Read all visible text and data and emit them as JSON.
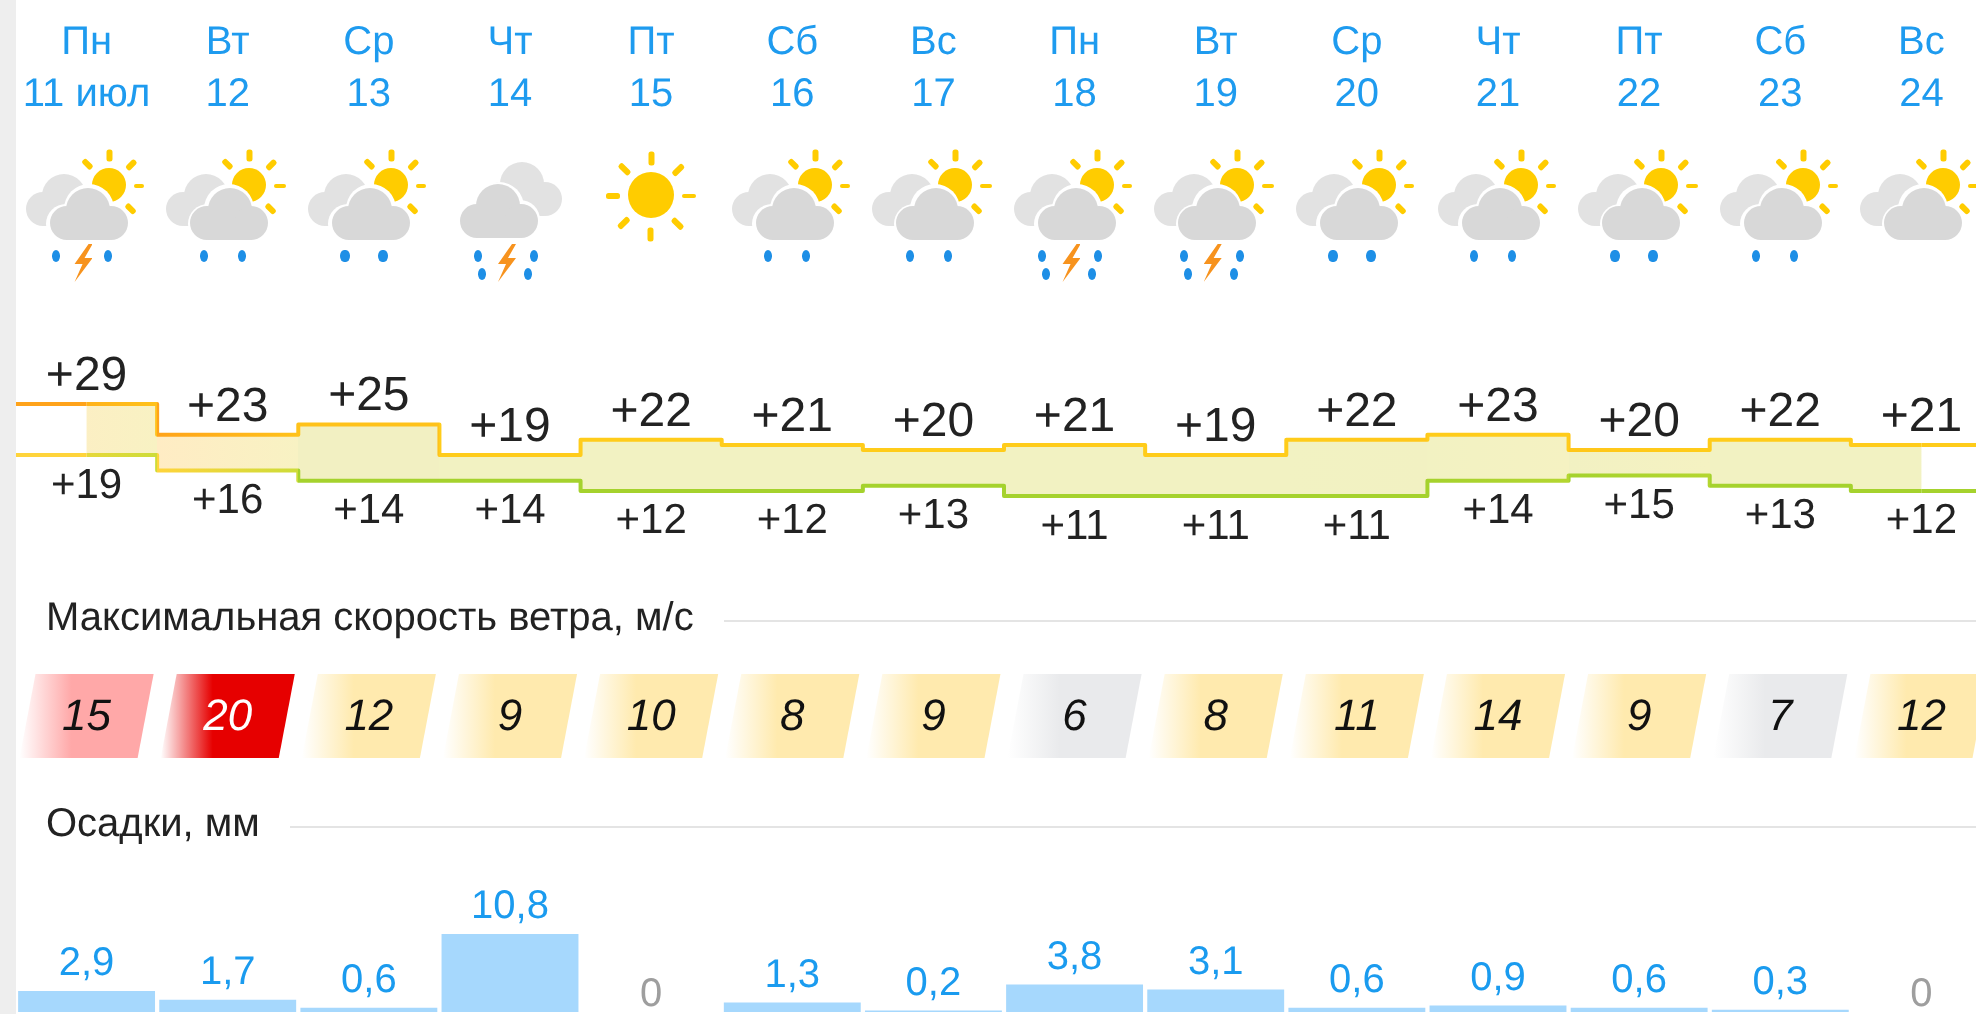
{
  "chart_data": [
    {
      "type": "step",
      "categories": [
        "Пн 11 июл",
        "Вт 12",
        "Ср 13",
        "Чт 14",
        "Пт 15",
        "Сб 16",
        "Вс 17",
        "Пн 18",
        "Вт 19",
        "Ср 20",
        "Чт 21",
        "Пт 22",
        "Сб 23",
        "Вс 24"
      ],
      "tick_labels": "x",
      "series": [
        {
          "values": [
            29,
            23,
            25,
            19,
            22,
            21,
            20,
            21,
            19,
            22,
            23,
            20,
            22,
            21
          ],
          "value_labels": [
            "+29",
            "+23",
            "+25",
            "+19",
            "+22",
            "+21",
            "+20",
            "+21",
            "+19",
            "+22",
            "+23",
            "+20",
            "+22",
            "+21"
          ],
          "colors": [
            "#ffa31a",
            "#ffc21a",
            "#ffc21a",
            "#ffcc1a",
            "#ffcc1a",
            "#ffcc1a",
            "#ffcc1a",
            "#ffcc1a",
            "#ffcc1a",
            "#ffcc1a",
            "#ffc61a",
            "#ffcc1a",
            "#ffcc1a",
            "#ffcc1a"
          ],
          "lower": [
            19,
            16,
            14,
            14,
            12,
            12,
            13,
            11,
            11,
            11,
            14,
            15,
            13,
            12
          ],
          "upper": [
            29,
            23,
            25,
            19,
            22,
            21,
            20,
            21,
            19,
            22,
            23,
            20,
            22,
            21
          ]
        },
        {
          "values": [
            19,
            16,
            14,
            14,
            12,
            12,
            13,
            11,
            11,
            11,
            14,
            15,
            13,
            12
          ],
          "value_labels": [
            "+19",
            "+16",
            "+14",
            "+14",
            "+12",
            "+12",
            "+13",
            "+11",
            "+11",
            "+11",
            "+14",
            "+15",
            "+13",
            "+12"
          ],
          "colors": [
            "#ffd43b",
            "#cddc39",
            "#a5d22d",
            "#a5d22d",
            "#a5d22d",
            "#a5d22d",
            "#a5d22d",
            "#a5d22d",
            "#a5d22d",
            "#a5d22d",
            "#a5d22d",
            "#b4d630",
            "#a5d22d",
            "#a5d22d"
          ]
        }
      ]
    },
    {
      "type": "heatmap",
      "title": "Максимальная скорость ветра, м/с",
      "categories": [
        null,
        null,
        null,
        null,
        null,
        null,
        null,
        null,
        null,
        null,
        null,
        null,
        null,
        null
      ],
      "y_categories": [
        null
      ],
      "tick_labels": false,
      "cells": [
        [
          15,
          20,
          12,
          9,
          10,
          8,
          9,
          6,
          8,
          11,
          14,
          9,
          7,
          12
        ]
      ],
      "colors": [
        "#ffa8a8",
        "#e60000",
        "#ffeaae",
        "#ffeaae",
        "#ffeaae",
        "#ffeaae",
        "#ffeaae",
        "#e9eaec",
        "#ffeaae",
        "#ffeaae",
        "#ffeaae",
        "#ffeaae",
        "#e9eaec",
        "#ffeaae"
      ],
      "data_labels": true
    },
    {
      "type": "bar",
      "title": "Осадки, мм",
      "categories": [
        null,
        null,
        null,
        null,
        null,
        null,
        null,
        null,
        null,
        null,
        null,
        null,
        null,
        null
      ],
      "tick_labels": false,
      "values": [
        2.9,
        1.7,
        0.6,
        10.8,
        0,
        1.3,
        0.2,
        3.8,
        3.1,
        0.6,
        0.9,
        0.6,
        0.3,
        0
      ],
      "value_labels": [
        "2,9",
        "1,7",
        "0,6",
        "10,8",
        "0",
        "1,3",
        "0,2",
        "3,8",
        "3,1",
        "0,6",
        "0,9",
        "0,6",
        "0,3",
        "0"
      ],
      "color": "#a6d8fd"
    }
  ]
}
